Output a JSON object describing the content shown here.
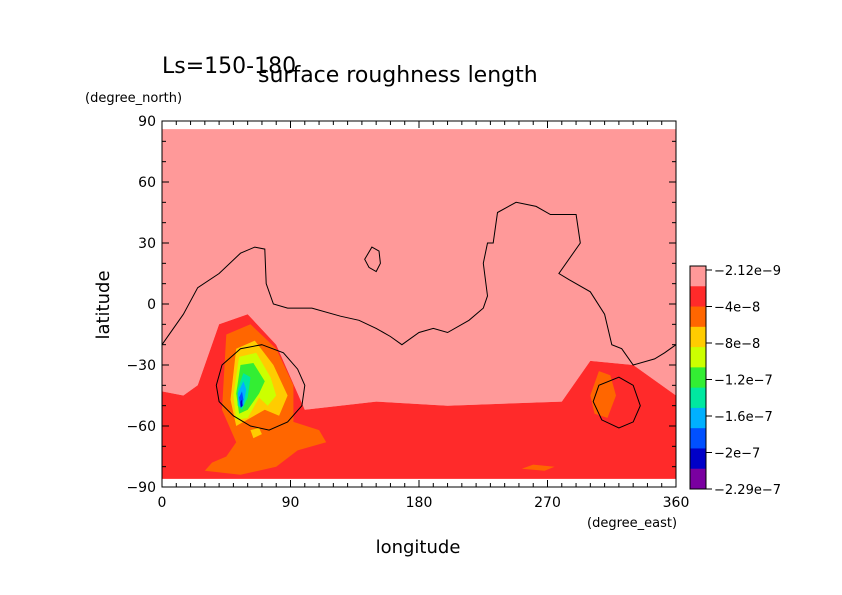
{
  "chart_data": {
    "type": "heatmap",
    "title": "surface roughness length",
    "subtitle": "Ls=150-180",
    "xlabel": "longitude",
    "ylabel": "latitude",
    "xunit": "(degree_east)",
    "yunit": "(degree_north)",
    "xlim": [
      0,
      360
    ],
    "ylim": [
      -90,
      90
    ],
    "xticks": [
      0,
      90,
      180,
      270,
      360
    ],
    "yticks": [
      90,
      60,
      30,
      0,
      -30,
      -60,
      -90
    ],
    "xtick_labels": [
      "0",
      "90",
      "180",
      "270",
      "360"
    ],
    "ytick_labels": [
      "90",
      "60",
      "30",
      "0",
      "−30",
      "−60",
      "−90"
    ],
    "colorbar": {
      "labels": [
        "−2.12e−9",
        "−4e−8",
        "−8e−8",
        "−1.2e−7",
        "−1.6e−7",
        "−2e−7",
        "−2.29e−7"
      ],
      "colors": [
        "#ff9999",
        "#ff2a2a",
        "#ff6600",
        "#ffcc00",
        "#ccff00",
        "#33ee33",
        "#00e8a0",
        "#00b0ff",
        "#0050ff",
        "#0000c8",
        "#7a00a0"
      ]
    },
    "regions": [
      {
        "level": 0,
        "color": "#ff9999",
        "points": [
          [
            0,
            86
          ],
          [
            360,
            86
          ],
          [
            360,
            -45
          ],
          [
            330,
            -30
          ],
          [
            300,
            -28
          ],
          [
            280,
            -48
          ],
          [
            200,
            -50
          ],
          [
            150,
            -48
          ],
          [
            100,
            -52
          ],
          [
            80,
            -20
          ],
          [
            60,
            -5
          ],
          [
            40,
            -10
          ],
          [
            25,
            -40
          ],
          [
            15,
            -45
          ],
          [
            0,
            -43
          ]
        ]
      },
      {
        "level": 1,
        "color": "#ff2a2a",
        "points": [
          [
            0,
            -43
          ],
          [
            15,
            -45
          ],
          [
            25,
            -40
          ],
          [
            40,
            -10
          ],
          [
            60,
            -5
          ],
          [
            80,
            -20
          ],
          [
            100,
            -52
          ],
          [
            150,
            -48
          ],
          [
            200,
            -50
          ],
          [
            280,
            -48
          ],
          [
            300,
            -28
          ],
          [
            330,
            -30
          ],
          [
            360,
            -45
          ],
          [
            360,
            -86
          ],
          [
            0,
            -86
          ]
        ]
      },
      {
        "level": 2,
        "color": "#ff6600",
        "points": [
          [
            42,
            -52
          ],
          [
            45,
            -15
          ],
          [
            62,
            -10
          ],
          [
            80,
            -22
          ],
          [
            92,
            -40
          ],
          [
            92,
            -58
          ],
          [
            110,
            -62
          ],
          [
            115,
            -68
          ],
          [
            95,
            -72
          ],
          [
            80,
            -80
          ],
          [
            55,
            -84
          ],
          [
            30,
            -82
          ],
          [
            35,
            -78
          ],
          [
            45,
            -75
          ],
          [
            52,
            -68
          ]
        ]
      },
      {
        "level": 2,
        "color": "#ff6600",
        "points": [
          [
            300,
            -45
          ],
          [
            306,
            -33
          ],
          [
            314,
            -35
          ],
          [
            318,
            -45
          ],
          [
            312,
            -56
          ],
          [
            303,
            -54
          ]
        ]
      },
      {
        "level": 2,
        "color": "#ff6600",
        "points": [
          [
            252,
            -81
          ],
          [
            260,
            -79
          ],
          [
            275,
            -80
          ],
          [
            268,
            -82
          ]
        ]
      },
      {
        "level": 3,
        "color": "#ffcc00",
        "points": [
          [
            48,
            -47
          ],
          [
            52,
            -22
          ],
          [
            65,
            -18
          ],
          [
            78,
            -30
          ],
          [
            88,
            -45
          ],
          [
            82,
            -55
          ],
          [
            72,
            -52
          ],
          [
            62,
            -56
          ],
          [
            52,
            -60
          ]
        ]
      },
      {
        "level": 3,
        "color": "#ffcc00",
        "points": [
          [
            62,
            -62
          ],
          [
            68,
            -61
          ],
          [
            70,
            -64
          ],
          [
            64,
            -66
          ]
        ]
      },
      {
        "level": 4,
        "color": "#ccff00",
        "points": [
          [
            50,
            -45
          ],
          [
            54,
            -26
          ],
          [
            66,
            -24
          ],
          [
            76,
            -36
          ],
          [
            80,
            -45
          ],
          [
            74,
            -50
          ],
          [
            68,
            -46
          ],
          [
            60,
            -56
          ],
          [
            52,
            -57
          ]
        ]
      },
      {
        "level": 5,
        "color": "#33ee33",
        "points": [
          [
            52,
            -44
          ],
          [
            55,
            -30
          ],
          [
            64,
            -29
          ],
          [
            72,
            -38
          ],
          [
            68,
            -44
          ],
          [
            60,
            -52
          ],
          [
            54,
            -54
          ]
        ]
      },
      {
        "level": 6,
        "color": "#00e8a0",
        "points": [
          [
            53,
            -42
          ],
          [
            57,
            -34
          ],
          [
            62,
            -36
          ],
          [
            60,
            -46
          ],
          [
            56,
            -52
          ],
          [
            53,
            -50
          ]
        ]
      },
      {
        "level": 7,
        "color": "#00b0ff",
        "points": [
          [
            53,
            -44
          ],
          [
            57,
            -38
          ],
          [
            59,
            -42
          ],
          [
            57,
            -50
          ],
          [
            54,
            -50
          ]
        ]
      },
      {
        "level": 8,
        "color": "#0050ff",
        "points": [
          [
            54,
            -46
          ],
          [
            56,
            -43
          ],
          [
            57,
            -47
          ],
          [
            55,
            -51
          ]
        ]
      },
      {
        "level": 9,
        "color": "#0000c8",
        "points": [
          [
            55,
            -48
          ],
          [
            56,
            -47
          ],
          [
            56.5,
            -50
          ],
          [
            55.2,
            -51
          ]
        ]
      }
    ],
    "contours": [
      {
        "closed": false,
        "points": [
          [
            0,
            -20
          ],
          [
            15,
            -5
          ],
          [
            25,
            8
          ],
          [
            40,
            15
          ],
          [
            55,
            25
          ],
          [
            65,
            28
          ],
          [
            72,
            27
          ],
          [
            73,
            10
          ],
          [
            78,
            0
          ],
          [
            88,
            -2
          ],
          [
            105,
            -2
          ],
          [
            125,
            -6
          ],
          [
            138,
            -8
          ],
          [
            150,
            -12
          ],
          [
            160,
            -16
          ],
          [
            168,
            -20
          ],
          [
            180,
            -14
          ],
          [
            190,
            -12
          ],
          [
            200,
            -14
          ],
          [
            215,
            -8
          ],
          [
            225,
            -2
          ],
          [
            228,
            4
          ],
          [
            225,
            20
          ],
          [
            228,
            30
          ],
          [
            232,
            30
          ],
          [
            235,
            45
          ],
          [
            248,
            50
          ],
          [
            262,
            48
          ],
          [
            272,
            44
          ],
          [
            290,
            44
          ],
          [
            293,
            30
          ],
          [
            278,
            15
          ],
          [
            285,
            12
          ],
          [
            300,
            6
          ],
          [
            310,
            -5
          ],
          [
            315,
            -20
          ],
          [
            322,
            -22
          ],
          [
            330,
            -30
          ],
          [
            345,
            -27
          ],
          [
            352,
            -24
          ],
          [
            360,
            -20
          ]
        ]
      },
      {
        "closed": true,
        "points": [
          [
            142,
            22
          ],
          [
            147,
            28
          ],
          [
            152,
            26
          ],
          [
            153,
            20
          ],
          [
            150,
            16
          ],
          [
            145,
            18
          ]
        ]
      },
      {
        "closed": true,
        "points": [
          [
            70,
            -20
          ],
          [
            85,
            -24
          ],
          [
            95,
            -32
          ],
          [
            100,
            -40
          ],
          [
            98,
            -50
          ],
          [
            88,
            -58
          ],
          [
            75,
            -62
          ],
          [
            62,
            -60
          ],
          [
            50,
            -55
          ],
          [
            40,
            -48
          ],
          [
            38,
            -40
          ],
          [
            42,
            -30
          ],
          [
            55,
            -22
          ]
        ]
      },
      {
        "closed": true,
        "points": [
          [
            320,
            -36
          ],
          [
            330,
            -40
          ],
          [
            335,
            -50
          ],
          [
            330,
            -58
          ],
          [
            320,
            -61
          ],
          [
            308,
            -57
          ],
          [
            302,
            -48
          ],
          [
            306,
            -40
          ]
        ]
      }
    ]
  }
}
